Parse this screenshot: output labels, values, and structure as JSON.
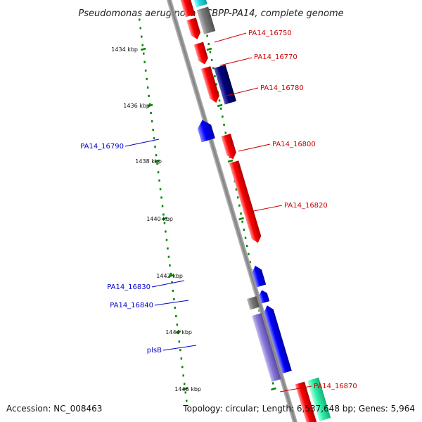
{
  "title": "Pseudomonas aeruginosa UCBPP-PA14, complete genome",
  "footer": {
    "accession": "Accession: NC_008463",
    "topology": "Topology: circular; Length: 6,537,648 bp; Genes: 5,964"
  },
  "colors": {
    "forward_gene": "#ff0000",
    "reverse_gene": "#0000ff",
    "forward_label": "#cc0000",
    "reverse_label": "#0000cc",
    "backbone": "#808080",
    "tick": "#008800"
  },
  "ticks": [
    {
      "label": "1434 kbp"
    },
    {
      "label": "1436 kbp"
    },
    {
      "label": "1438 kbp"
    },
    {
      "label": "1440 kbp"
    },
    {
      "label": "1442 kbp"
    },
    {
      "label": "1444 kbp"
    },
    {
      "label": "1446 kbp"
    }
  ],
  "genes": [
    {
      "label": "PA14_16750",
      "strand": "forward"
    },
    {
      "label": "PA14_16770",
      "strand": "forward"
    },
    {
      "label": "PA14_16780",
      "strand": "forward"
    },
    {
      "label": "PA14_16790",
      "strand": "reverse"
    },
    {
      "label": "PA14_16800",
      "strand": "forward"
    },
    {
      "label": "PA14_16820",
      "strand": "forward"
    },
    {
      "label": "PA14_16830",
      "strand": "reverse"
    },
    {
      "label": "PA14_16840",
      "strand": "reverse"
    },
    {
      "label": "plsB",
      "strand": "reverse"
    },
    {
      "label": "PA14_16870",
      "strand": "forward"
    }
  ]
}
